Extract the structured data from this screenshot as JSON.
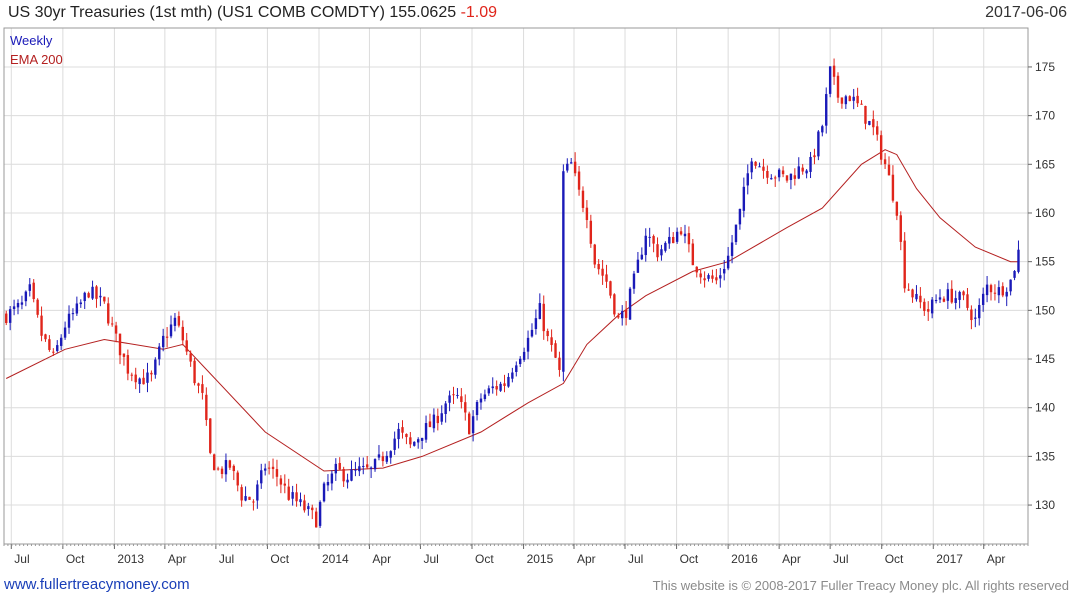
{
  "header": {
    "title": "US 30yr Treasuries (1st mth) (US1 COMB COMDTY) 155.0625",
    "change": "-1.09",
    "date": "2017-06-06"
  },
  "footer": {
    "left": "www.fullertreacymoney.com",
    "right": "This website is © 2008-2017 Fuller Treacy Money plc. All rights reserved"
  },
  "colors": {
    "up": "#1a1ab8",
    "down": "#e0251b",
    "ema": "#b42020",
    "grid": "#dcdcdc"
  },
  "chart_data": {
    "type": "candlestick",
    "legend": [
      {
        "name": "Weekly",
        "color": "#1a1ab8"
      },
      {
        "name": "EMA 200",
        "color": "#b42020"
      }
    ],
    "legend_position": "top-left",
    "grid": true,
    "y_axis_side": "right",
    "ylim": [
      126,
      179
    ],
    "yticks": [
      130,
      135,
      140,
      145,
      150,
      155,
      160,
      165,
      170,
      175
    ],
    "xlim": [
      "2012-06-18",
      "2017-06-19"
    ],
    "xticks": [
      {
        "label": "Jul",
        "date": "2012-07-01"
      },
      {
        "label": "Oct",
        "date": "2012-10-01"
      },
      {
        "label": "2013",
        "date": "2013-01-01"
      },
      {
        "label": "Apr",
        "date": "2013-04-01"
      },
      {
        "label": "Jul",
        "date": "2013-07-01"
      },
      {
        "label": "Oct",
        "date": "2013-10-01"
      },
      {
        "label": "2014",
        "date": "2014-01-01"
      },
      {
        "label": "Apr",
        "date": "2014-04-01"
      },
      {
        "label": "Jul",
        "date": "2014-07-01"
      },
      {
        "label": "Oct",
        "date": "2014-10-01"
      },
      {
        "label": "2015",
        "date": "2015-01-01"
      },
      {
        "label": "Apr",
        "date": "2015-04-01"
      },
      {
        "label": "Jul",
        "date": "2015-07-01"
      },
      {
        "label": "Oct",
        "date": "2015-10-01"
      },
      {
        "label": "2016",
        "date": "2016-01-01"
      },
      {
        "label": "Apr",
        "date": "2016-04-01"
      },
      {
        "label": "Jul",
        "date": "2016-07-01"
      },
      {
        "label": "Oct",
        "date": "2016-10-01"
      },
      {
        "label": "2017",
        "date": "2017-01-01"
      },
      {
        "label": "Apr",
        "date": "2017-04-01"
      }
    ],
    "price_path": [
      [
        "2012-06-22",
        149.5
      ],
      [
        "2012-07-20",
        150.5
      ],
      [
        "2012-08-03",
        152.0
      ],
      [
        "2012-08-24",
        147.5
      ],
      [
        "2012-09-14",
        145.0
      ],
      [
        "2012-10-05",
        148.5
      ],
      [
        "2012-10-26",
        150.0
      ],
      [
        "2012-11-16",
        152.0
      ],
      [
        "2012-12-14",
        150.5
      ],
      [
        "2013-01-04",
        147.0
      ],
      [
        "2013-01-25",
        144.0
      ],
      [
        "2013-02-15",
        143.0
      ],
      [
        "2013-03-08",
        143.0
      ],
      [
        "2013-03-29",
        147.0
      ],
      [
        "2013-04-19",
        149.0
      ],
      [
        "2013-05-03",
        147.0
      ],
      [
        "2013-05-24",
        143.0
      ],
      [
        "2013-06-07",
        141.0
      ],
      [
        "2013-06-21",
        135.0
      ],
      [
        "2013-07-05",
        133.5
      ],
      [
        "2013-07-26",
        134.0
      ],
      [
        "2013-08-16",
        131.0
      ],
      [
        "2013-09-06",
        130.5
      ],
      [
        "2013-09-27",
        134.0
      ],
      [
        "2013-10-18",
        133.0
      ],
      [
        "2013-11-08",
        131.0
      ],
      [
        "2013-11-29",
        130.0
      ],
      [
        "2013-12-27",
        128.5
      ],
      [
        "2014-01-10",
        131.5
      ],
      [
        "2014-01-31",
        133.5
      ],
      [
        "2014-02-21",
        133.0
      ],
      [
        "2014-03-14",
        133.5
      ],
      [
        "2014-04-04",
        133.5
      ],
      [
        "2014-04-25",
        135.0
      ],
      [
        "2014-05-23",
        137.5
      ],
      [
        "2014-06-13",
        136.0
      ],
      [
        "2014-07-04",
        137.5
      ],
      [
        "2014-07-25",
        138.5
      ],
      [
        "2014-08-15",
        140.5
      ],
      [
        "2014-09-05",
        141.0
      ],
      [
        "2014-09-26",
        138.0
      ],
      [
        "2014-10-17",
        141.0
      ],
      [
        "2014-11-07",
        142.0
      ],
      [
        "2014-11-28",
        142.5
      ],
      [
        "2014-12-19",
        145.0
      ],
      [
        "2015-01-09",
        147.0
      ],
      [
        "2015-01-30",
        150.0
      ],
      [
        "2015-02-13",
        147.0
      ],
      [
        "2015-02-27",
        145.0
      ],
      [
        "2015-03-06",
        143.5
      ],
      [
        "2015-03-13",
        164.0
      ],
      [
        "2015-03-27",
        165.0
      ],
      [
        "2015-04-10",
        162.0
      ],
      [
        "2015-04-24",
        160.0
      ],
      [
        "2015-05-08",
        155.0
      ],
      [
        "2015-05-29",
        153.0
      ],
      [
        "2015-06-19",
        149.0
      ],
      [
        "2015-07-03",
        150.0
      ],
      [
        "2015-07-17",
        153.0
      ],
      [
        "2015-08-07",
        158.0
      ],
      [
        "2015-08-28",
        156.0
      ],
      [
        "2015-09-18",
        157.0
      ],
      [
        "2015-10-09",
        158.5
      ],
      [
        "2015-10-30",
        155.0
      ],
      [
        "2015-11-20",
        153.5
      ],
      [
        "2015-12-11",
        153.0
      ],
      [
        "2016-01-01",
        155.5
      ],
      [
        "2016-01-22",
        160.0
      ],
      [
        "2016-02-12",
        166.0
      ],
      [
        "2016-03-04",
        164.5
      ],
      [
        "2016-03-25",
        164.0
      ],
      [
        "2016-04-15",
        163.5
      ],
      [
        "2016-05-06",
        164.5
      ],
      [
        "2016-05-27",
        165.0
      ],
      [
        "2016-06-17",
        169.0
      ],
      [
        "2016-07-01",
        174.5
      ],
      [
        "2016-07-15",
        172.0
      ],
      [
        "2016-08-05",
        172.0
      ],
      [
        "2016-08-26",
        170.5
      ],
      [
        "2016-09-16",
        168.5
      ],
      [
        "2016-10-07",
        165.0
      ],
      [
        "2016-10-28",
        160.5
      ],
      [
        "2016-11-11",
        153.0
      ],
      [
        "2016-12-02",
        151.0
      ],
      [
        "2016-12-23",
        150.0
      ],
      [
        "2017-01-13",
        151.5
      ],
      [
        "2017-02-03",
        151.5
      ],
      [
        "2017-02-24",
        151.0
      ],
      [
        "2017-03-17",
        149.0
      ],
      [
        "2017-04-07",
        152.5
      ],
      [
        "2017-04-28",
        152.0
      ],
      [
        "2017-05-19",
        153.0
      ],
      [
        "2017-06-02",
        156.0
      ]
    ],
    "ema_200_path": [
      [
        "2012-06-22",
        143.0
      ],
      [
        "2012-10-05",
        146.0
      ],
      [
        "2012-12-14",
        147.0
      ],
      [
        "2013-03-29",
        146.0
      ],
      [
        "2013-05-03",
        146.5
      ],
      [
        "2013-06-21",
        143.5
      ],
      [
        "2013-09-27",
        137.5
      ],
      [
        "2014-01-10",
        133.5
      ],
      [
        "2014-04-25",
        133.8
      ],
      [
        "2014-07-04",
        135.0
      ],
      [
        "2014-10-17",
        137.5
      ],
      [
        "2015-01-09",
        140.5
      ],
      [
        "2015-03-13",
        142.5
      ],
      [
        "2015-04-24",
        146.5
      ],
      [
        "2015-06-19",
        149.5
      ],
      [
        "2015-08-07",
        151.5
      ],
      [
        "2015-10-30",
        154.0
      ],
      [
        "2016-01-01",
        155.0
      ],
      [
        "2016-04-15",
        158.5
      ],
      [
        "2016-06-17",
        160.5
      ],
      [
        "2016-08-26",
        165.0
      ],
      [
        "2016-10-07",
        166.5
      ],
      [
        "2016-10-28",
        166.0
      ],
      [
        "2016-12-02",
        162.5
      ],
      [
        "2017-01-13",
        159.5
      ],
      [
        "2017-03-17",
        156.5
      ],
      [
        "2017-05-19",
        155.0
      ],
      [
        "2017-06-02",
        155.0
      ]
    ]
  }
}
